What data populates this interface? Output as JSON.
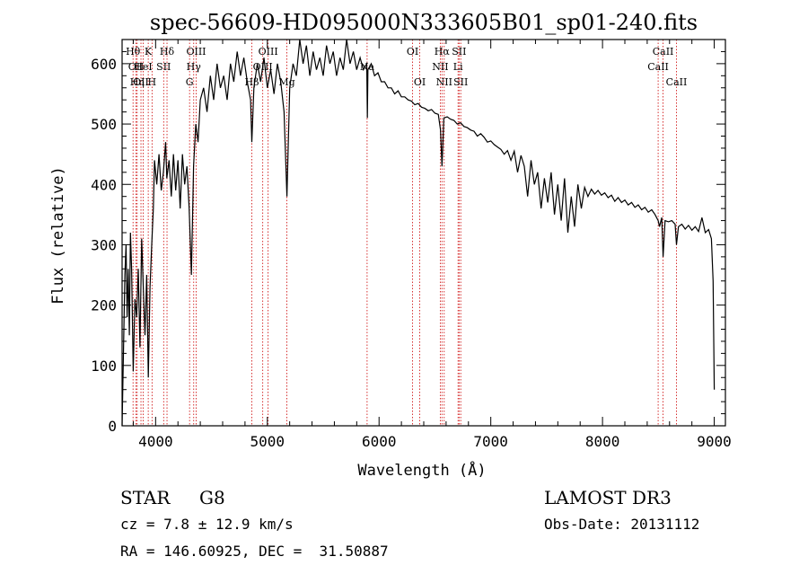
{
  "chart_data": {
    "type": "line",
    "title": "spec-56609-HD095000N333605B01_sp01-240.fits",
    "xlabel": "Wavelength (Å)",
    "ylabel": "Flux (relative)",
    "xlim": [
      3700,
      9100
    ],
    "ylim": [
      0,
      640
    ],
    "x_ticks": [
      4000,
      5000,
      6000,
      7000,
      8000,
      9000
    ],
    "y_ticks": [
      0,
      100,
      200,
      300,
      400,
      500,
      600
    ],
    "grid": false,
    "series": [
      {
        "points": [
          [
            3700,
            0
          ],
          [
            3712,
            120
          ],
          [
            3725,
            250
          ],
          [
            3735,
            300
          ],
          [
            3745,
            180
          ],
          [
            3755,
            260
          ],
          [
            3765,
            150
          ],
          [
            3775,
            320
          ],
          [
            3785,
            260
          ],
          [
            3800,
            90
          ],
          [
            3815,
            210
          ],
          [
            3830,
            180
          ],
          [
            3845,
            260
          ],
          [
            3860,
            130
          ],
          [
            3875,
            310
          ],
          [
            3890,
            230
          ],
          [
            3905,
            150
          ],
          [
            3920,
            250
          ],
          [
            3935,
            80
          ],
          [
            3950,
            230
          ],
          [
            3965,
            300
          ],
          [
            3980,
            360
          ],
          [
            3990,
            440
          ],
          [
            4010,
            400
          ],
          [
            4030,
            450
          ],
          [
            4050,
            390
          ],
          [
            4070,
            420
          ],
          [
            4090,
            470
          ],
          [
            4100,
            410
          ],
          [
            4120,
            440
          ],
          [
            4140,
            380
          ],
          [
            4160,
            450
          ],
          [
            4180,
            390
          ],
          [
            4200,
            440
          ],
          [
            4220,
            360
          ],
          [
            4240,
            450
          ],
          [
            4260,
            400
          ],
          [
            4280,
            430
          ],
          [
            4300,
            360
          ],
          [
            4320,
            250
          ],
          [
            4340,
            430
          ],
          [
            4360,
            500
          ],
          [
            4380,
            470
          ],
          [
            4400,
            540
          ],
          [
            4430,
            560
          ],
          [
            4460,
            520
          ],
          [
            4490,
            580
          ],
          [
            4520,
            540
          ],
          [
            4550,
            600
          ],
          [
            4580,
            560
          ],
          [
            4610,
            580
          ],
          [
            4640,
            540
          ],
          [
            4670,
            600
          ],
          [
            4700,
            570
          ],
          [
            4730,
            620
          ],
          [
            4760,
            580
          ],
          [
            4790,
            610
          ],
          [
            4820,
            570
          ],
          [
            4850,
            540
          ],
          [
            4861,
            470
          ],
          [
            4880,
            560
          ],
          [
            4910,
            600
          ],
          [
            4940,
            570
          ],
          [
            4970,
            610
          ],
          [
            5000,
            560
          ],
          [
            5030,
            590
          ],
          [
            5060,
            550
          ],
          [
            5090,
            600
          ],
          [
            5120,
            570
          ],
          [
            5150,
            520
          ],
          [
            5175,
            380
          ],
          [
            5200,
            560
          ],
          [
            5230,
            600
          ],
          [
            5260,
            580
          ],
          [
            5290,
            640
          ],
          [
            5320,
            600
          ],
          [
            5350,
            630
          ],
          [
            5380,
            580
          ],
          [
            5410,
            620
          ],
          [
            5440,
            590
          ],
          [
            5470,
            610
          ],
          [
            5500,
            580
          ],
          [
            5530,
            630
          ],
          [
            5560,
            600
          ],
          [
            5590,
            620
          ],
          [
            5620,
            580
          ],
          [
            5650,
            610
          ],
          [
            5680,
            590
          ],
          [
            5710,
            640
          ],
          [
            5740,
            600
          ],
          [
            5770,
            620
          ],
          [
            5800,
            590
          ],
          [
            5830,
            610
          ],
          [
            5860,
            590
          ],
          [
            5890,
            600
          ],
          [
            5895,
            510
          ],
          [
            5900,
            590
          ],
          [
            5930,
            600
          ],
          [
            5960,
            580
          ],
          [
            5990,
            585
          ],
          [
            6020,
            570
          ],
          [
            6050,
            570
          ],
          [
            6080,
            560
          ],
          [
            6110,
            560
          ],
          [
            6140,
            550
          ],
          [
            6170,
            555
          ],
          [
            6200,
            545
          ],
          [
            6230,
            545
          ],
          [
            6260,
            540
          ],
          [
            6290,
            538
          ],
          [
            6320,
            532
          ],
          [
            6350,
            534
          ],
          [
            6380,
            528
          ],
          [
            6410,
            526
          ],
          [
            6440,
            522
          ],
          [
            6470,
            524
          ],
          [
            6500,
            518
          ],
          [
            6530,
            516
          ],
          [
            6550,
            490
          ],
          [
            6563,
            430
          ],
          [
            6580,
            510
          ],
          [
            6610,
            512
          ],
          [
            6640,
            508
          ],
          [
            6670,
            506
          ],
          [
            6700,
            500
          ],
          [
            6730,
            502
          ],
          [
            6760,
            496
          ],
          [
            6790,
            494
          ],
          [
            6820,
            490
          ],
          [
            6850,
            488
          ],
          [
            6880,
            480
          ],
          [
            6910,
            484
          ],
          [
            6940,
            478
          ],
          [
            6970,
            470
          ],
          [
            7000,
            472
          ],
          [
            7030,
            466
          ],
          [
            7060,
            462
          ],
          [
            7090,
            458
          ],
          [
            7120,
            450
          ],
          [
            7150,
            456
          ],
          [
            7180,
            440
          ],
          [
            7210,
            455
          ],
          [
            7240,
            420
          ],
          [
            7270,
            448
          ],
          [
            7300,
            430
          ],
          [
            7330,
            380
          ],
          [
            7360,
            440
          ],
          [
            7390,
            400
          ],
          [
            7420,
            420
          ],
          [
            7450,
            360
          ],
          [
            7480,
            410
          ],
          [
            7510,
            370
          ],
          [
            7540,
            420
          ],
          [
            7570,
            350
          ],
          [
            7600,
            400
          ],
          [
            7630,
            340
          ],
          [
            7660,
            410
          ],
          [
            7690,
            320
          ],
          [
            7720,
            380
          ],
          [
            7750,
            330
          ],
          [
            7780,
            400
          ],
          [
            7810,
            360
          ],
          [
            7840,
            395
          ],
          [
            7870,
            380
          ],
          [
            7900,
            392
          ],
          [
            7930,
            384
          ],
          [
            7960,
            390
          ],
          [
            7990,
            382
          ],
          [
            8020,
            386
          ],
          [
            8050,
            378
          ],
          [
            8080,
            382
          ],
          [
            8110,
            372
          ],
          [
            8140,
            378
          ],
          [
            8170,
            370
          ],
          [
            8200,
            374
          ],
          [
            8230,
            366
          ],
          [
            8260,
            370
          ],
          [
            8290,
            362
          ],
          [
            8320,
            366
          ],
          [
            8350,
            358
          ],
          [
            8380,
            362
          ],
          [
            8410,
            354
          ],
          [
            8440,
            358
          ],
          [
            8470,
            350
          ],
          [
            8498,
            340
          ],
          [
            8510,
            330
          ],
          [
            8530,
            345
          ],
          [
            8542,
            280
          ],
          [
            8560,
            340
          ],
          [
            8590,
            338
          ],
          [
            8620,
            340
          ],
          [
            8650,
            334
          ],
          [
            8662,
            300
          ],
          [
            8680,
            330
          ],
          [
            8710,
            334
          ],
          [
            8740,
            326
          ],
          [
            8770,
            332
          ],
          [
            8800,
            324
          ],
          [
            8830,
            330
          ],
          [
            8860,
            322
          ],
          [
            8890,
            345
          ],
          [
            8920,
            320
          ],
          [
            8950,
            325
          ],
          [
            8975,
            310
          ],
          [
            8990,
            240
          ],
          [
            9000,
            60
          ]
        ]
      }
    ],
    "line_labels": [
      {
        "wl": 3798,
        "label": "Hθ",
        "row": 1
      },
      {
        "wl": 3825,
        "label": "OII",
        "row": 2
      },
      {
        "wl": 3835,
        "label": "Hη",
        "row": 3
      },
      {
        "wl": 3869,
        "label": "OII",
        "row": 3
      },
      {
        "wl": 3889,
        "label": "HeI",
        "row": 2
      },
      {
        "wl": 3934,
        "label": "K",
        "row": 1
      },
      {
        "wl": 3968,
        "label": "H",
        "row": 3
      },
      {
        "wl": 4072,
        "label": "SII",
        "row": 2
      },
      {
        "wl": 4102,
        "label": "Hδ",
        "row": 1
      },
      {
        "wl": 4304,
        "label": "G",
        "row": 3
      },
      {
        "wl": 4341,
        "label": "Hγ",
        "row": 2
      },
      {
        "wl": 4363,
        "label": "OIII",
        "row": 1
      },
      {
        "wl": 4861,
        "label": "Hβ",
        "row": 3
      },
      {
        "wl": 4959,
        "label": "OIII",
        "row": 2
      },
      {
        "wl": 5007,
        "label": "OIII",
        "row": 1
      },
      {
        "wl": 5175,
        "label": "Mg",
        "row": 3
      },
      {
        "wl": 5893,
        "label": "Na",
        "row": 2
      },
      {
        "wl": 6300,
        "label": "OI",
        "row": 1
      },
      {
        "wl": 6364,
        "label": "OI",
        "row": 3
      },
      {
        "wl": 6548,
        "label": "NII",
        "row": 2
      },
      {
        "wl": 6563,
        "label": "Hα",
        "row": 1
      },
      {
        "wl": 6583,
        "label": "NII",
        "row": 3
      },
      {
        "wl": 6707,
        "label": "Li",
        "row": 2
      },
      {
        "wl": 6716,
        "label": "SII",
        "row": 1
      },
      {
        "wl": 6731,
        "label": "SII",
        "row": 3
      },
      {
        "wl": 8498,
        "label": "CaII",
        "row": 2
      },
      {
        "wl": 8542,
        "label": "CaII",
        "row": 1
      },
      {
        "wl": 8662,
        "label": "CaII",
        "row": 3
      }
    ]
  },
  "info": {
    "class_label": "STAR",
    "subclass": "G8",
    "survey": "LAMOST DR3",
    "cz_line": "cz = 7.8 ± 12.9 km/s",
    "obs_date_line": "Obs-Date: 20131112",
    "radec_line": "RA = 146.60925, DEC =  31.50887"
  }
}
